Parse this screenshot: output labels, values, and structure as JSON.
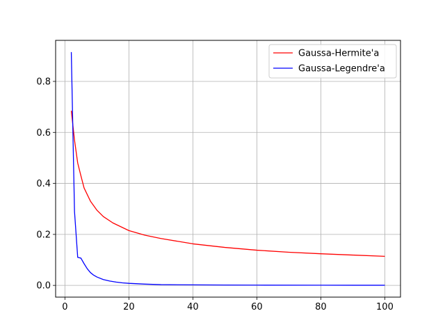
{
  "chart_data": {
    "type": "line",
    "title": "",
    "xlabel": "",
    "ylabel": "",
    "xlim": [
      -2.9,
      104.9
    ],
    "ylim": [
      -0.046,
      0.961
    ],
    "grid": true,
    "legend_position": "top-right",
    "x_ticks": [
      0,
      20,
      40,
      60,
      80,
      100
    ],
    "y_ticks": [
      0.0,
      0.2,
      0.4,
      0.6,
      0.8
    ],
    "x_tick_labels": [
      "0",
      "20",
      "40",
      "60",
      "80",
      "100"
    ],
    "y_tick_labels": [
      "0.0",
      "0.2",
      "0.4",
      "0.6",
      "0.8"
    ],
    "series": [
      {
        "name": "Gaussa-Hermite'a",
        "color": "#ff0000",
        "x": [
          2,
          3,
          4,
          5,
          6,
          8,
          10,
          12,
          15,
          20,
          25,
          30,
          40,
          50,
          60,
          70,
          80,
          90,
          100
        ],
        "y": [
          0.685,
          0.57,
          0.48,
          0.43,
          0.382,
          0.33,
          0.295,
          0.27,
          0.245,
          0.215,
          0.197,
          0.184,
          0.163,
          0.149,
          0.138,
          0.13,
          0.124,
          0.119,
          0.114
        ]
      },
      {
        "name": "Gaussa-Legendre'a",
        "color": "#0000ff",
        "x": [
          2,
          3,
          4,
          5,
          6,
          7,
          8,
          9,
          10,
          12,
          14,
          16,
          18,
          20,
          25,
          30,
          40,
          50,
          60,
          80,
          100
        ],
        "y": [
          0.915,
          0.29,
          0.11,
          0.107,
          0.085,
          0.065,
          0.05,
          0.04,
          0.033,
          0.023,
          0.017,
          0.013,
          0.01,
          0.008,
          0.005,
          0.003,
          0.002,
          0.0015,
          0.001,
          0.0007,
          0.0005
        ]
      }
    ]
  }
}
